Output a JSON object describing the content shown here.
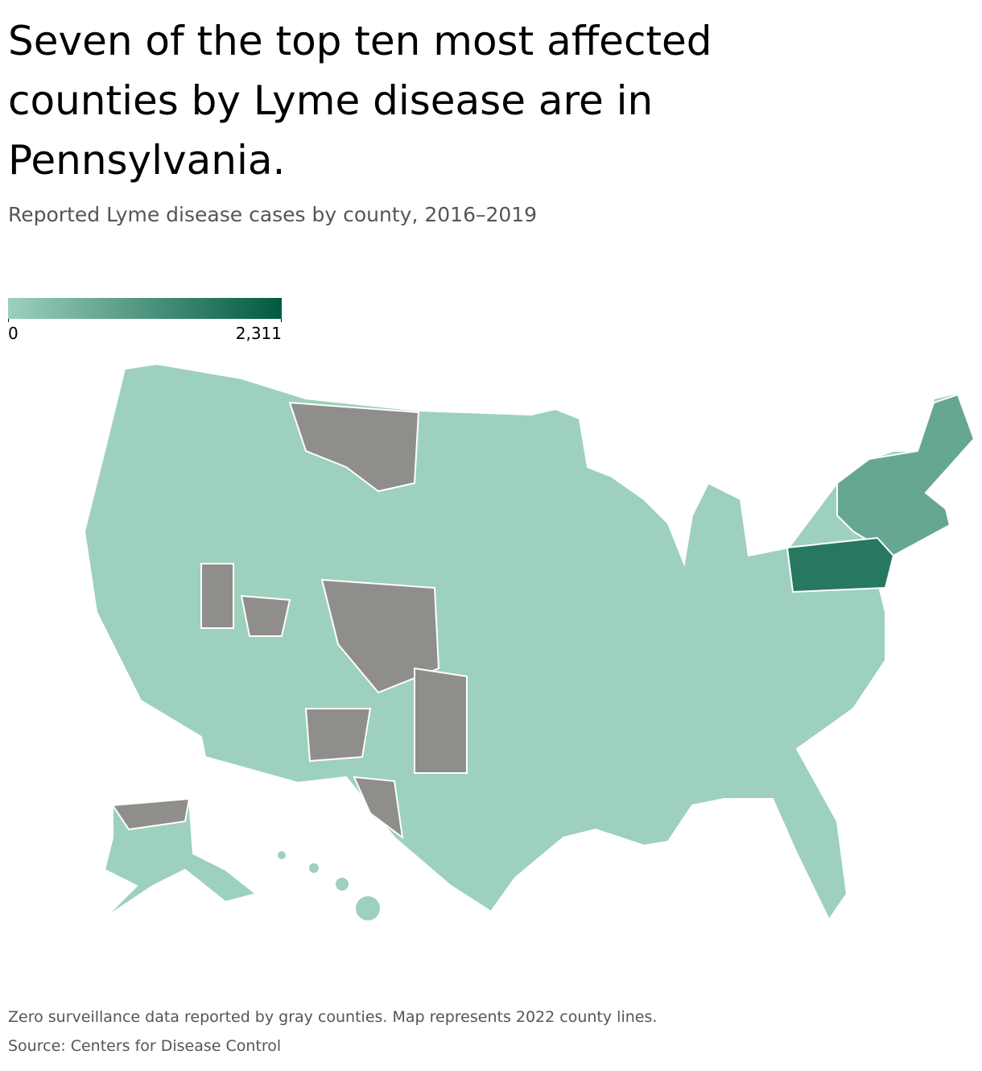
{
  "title": "Seven of the top ten most affected counties by Lyme disease are in Pennsylvania.",
  "subtitle": "Reported Lyme disease cases by county, 2016–2019",
  "legend": {
    "min": 0,
    "max": {
      "value": 2311,
      "label": "2,311"
    },
    "colors": [
      "#9dd0bf",
      "#005a41"
    ],
    "no_data_color": "#8f8e8a"
  },
  "note": "Zero surveillance data reported by gray counties. Map represents 2022 county lines.",
  "source": "Source: Centers for Disease Control"
}
